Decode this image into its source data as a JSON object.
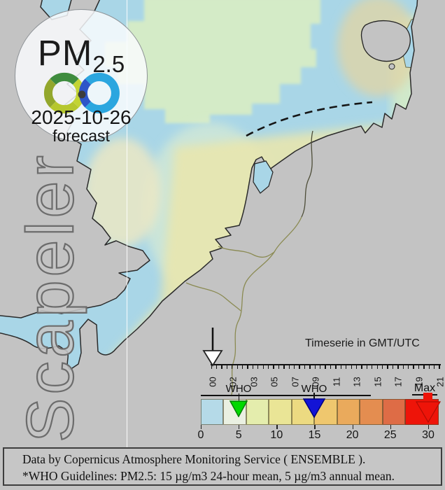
{
  "logo": {
    "pollutant": "PM",
    "pollutant_sub": "2.5",
    "date": "2025-10-26",
    "mode": "forecast",
    "ring_colors": {
      "green_dark": "#3f8c3e",
      "lime": "#c3d434",
      "yellow_green": "#b6c72e",
      "olive": "#93a72c",
      "azure": "#2ba6df",
      "blue_dark": "#2d55c8",
      "dot": "#3c3c3c"
    }
  },
  "watermark": "Scapeler",
  "timeline": {
    "title": "Timeserie in GMT/UTC",
    "tick_labels": [
      "00",
      "02",
      "03",
      "05",
      "07",
      "09",
      "11",
      "13",
      "15",
      "17",
      "19",
      "21"
    ],
    "selected_label": "00"
  },
  "colorbar": {
    "who_annual_label": "WHO",
    "who_24h_label": "WHO",
    "max_label": "Max",
    "numbers": [
      "0",
      "5",
      "10",
      "15",
      "20",
      "25",
      "30"
    ],
    "min": 0,
    "max": 30,
    "units": "µg/m3",
    "cells": [
      {
        "from": 0,
        "to": 3,
        "color": "#b5dae8"
      },
      {
        "from": 3,
        "to": 6,
        "color": "#eaf0e2"
      },
      {
        "from": 6,
        "to": 9,
        "color": "#e4edad"
      },
      {
        "from": 9,
        "to": 12,
        "color": "#eae596"
      },
      {
        "from": 12,
        "to": 15,
        "color": "#ecda81"
      },
      {
        "from": 15,
        "to": 18,
        "color": "#efc76e"
      },
      {
        "from": 18,
        "to": 21,
        "color": "#eaaa5c"
      },
      {
        "from": 21,
        "to": 24,
        "color": "#e48d50"
      },
      {
        "from": 24,
        "to": 27,
        "color": "#de6c46"
      },
      {
        "from": 27,
        "to": 30,
        "color": "#ee1409"
      }
    ],
    "markers": [
      {
        "name": "who-annual-marker",
        "value": 5,
        "color": "#00d900"
      },
      {
        "name": "who-24h-marker",
        "value": 15,
        "color": "#1313d6"
      },
      {
        "name": "max-marker",
        "value": 30,
        "color": "#ee1409"
      }
    ]
  },
  "footer": {
    "line1": "Data by Copernicus Atmosphere Monitoring Service ( ENSEMBLE ).",
    "line2": "*WHO Guidelines: PM2.5: 15 µg/m3 24-hour mean, 5 µg/m3 annual mean."
  },
  "map": {
    "colors": {
      "sea": "#a9d6e7",
      "land": "#c3c3c3",
      "tint_green": "#d7ecc5",
      "tint_pale_yellow": "#e9e6ad",
      "tint_yellow": "#e3d977",
      "tint_cream": "#ebe8c4",
      "tint_tan": "#ded5a8"
    }
  }
}
